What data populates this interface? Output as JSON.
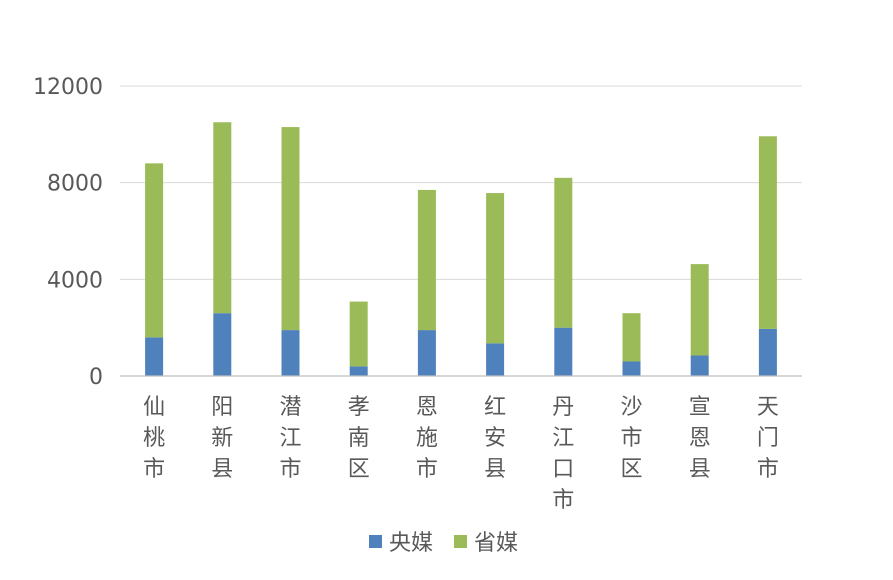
{
  "chart_data": {
    "type": "bar",
    "stacked": true,
    "categories": [
      "仙桃市",
      "阳新县",
      "潜江市",
      "孝南区",
      "恩施市",
      "红安县",
      "丹江口市",
      "沙市区",
      "宣恩县",
      "天门市"
    ],
    "series": [
      {
        "name": "央媒",
        "color": "#4f81bd",
        "values": [
          1600,
          2600,
          1900,
          400,
          1900,
          1350,
          2000,
          600,
          850,
          1950
        ]
      },
      {
        "name": "省媒",
        "color": "#9bbb59",
        "values": [
          7200,
          7900,
          8400,
          2680,
          5800,
          6220,
          6200,
          2000,
          3780,
          7970
        ]
      }
    ],
    "ylim": [
      0,
      12000
    ],
    "yticks": [
      0,
      4000,
      8000,
      12000
    ],
    "ytick_labels": [
      "0",
      "4000",
      "8000",
      "12000"
    ],
    "grid": true,
    "legend_position": "bottom"
  }
}
